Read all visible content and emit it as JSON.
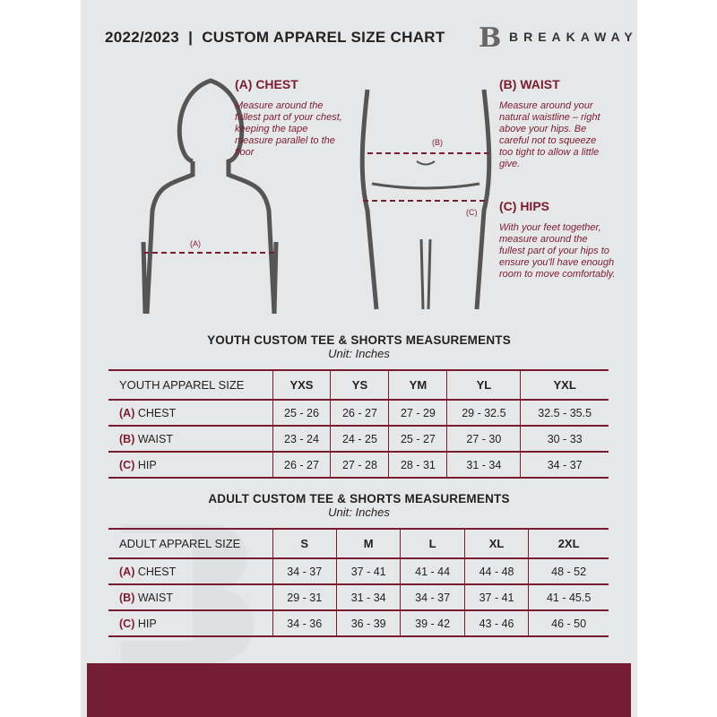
{
  "header": {
    "title": "2022/2023  |  CUSTOM APPAREL SIZE CHART",
    "brand": "BREAKAWAY",
    "logo_letter": "B"
  },
  "measures": {
    "chest": {
      "heading": "(A) CHEST",
      "desc": "Measure around the fullest part of your chest, keeping the tape measure parallel to the floor",
      "marker": "(A)"
    },
    "waist": {
      "heading": "(B) WAIST",
      "desc": "Measure around your natural waistline – right above your hips. Be careful not to squeeze too tight to allow a little give.",
      "marker": "(B)"
    },
    "hips": {
      "heading": "(C) HIPS",
      "desc": "With your feet together, measure around the fullest part of your hips to ensure you'll have enough room to move comfortably.",
      "marker": "(C)"
    }
  },
  "youth": {
    "title": "YOUTH CUSTOM TEE & SHORTS MEASUREMENTS",
    "unit": "Unit: Inches",
    "size_label": "YOUTH APPAREL SIZE",
    "sizes": [
      "YXS",
      "YS",
      "YM",
      "YL",
      "YXL"
    ],
    "rows": [
      {
        "letter": "(A)",
        "name": "CHEST",
        "values": [
          "25 - 26",
          "26 - 27",
          "27 - 29",
          "29 - 32.5",
          "32.5 - 35.5"
        ]
      },
      {
        "letter": "(B)",
        "name": "WAIST",
        "values": [
          "23 - 24",
          "24 - 25",
          "25 - 27",
          "27 - 30",
          "30 - 33"
        ]
      },
      {
        "letter": "(C)",
        "name": "HIP",
        "values": [
          "26 - 27",
          "27 - 28",
          "28 - 31",
          "31 - 34",
          "34 - 37"
        ]
      }
    ]
  },
  "adult": {
    "title": "ADULT CUSTOM TEE & SHORTS MEASUREMENTS",
    "unit": "Unit: Inches",
    "size_label": "ADULT APPAREL SIZE",
    "sizes": [
      "S",
      "M",
      "L",
      "XL",
      "2XL"
    ],
    "rows": [
      {
        "letter": "(A)",
        "name": "CHEST",
        "values": [
          "34 - 37",
          "37 - 41",
          "41 - 44",
          "44 - 48",
          "48 - 52"
        ]
      },
      {
        "letter": "(B)",
        "name": "WAIST",
        "values": [
          "29 - 31",
          "31 - 34",
          "34 - 37",
          "37 - 41",
          "41 - 45.5"
        ]
      },
      {
        "letter": "(C)",
        "name": "HIP",
        "values": [
          "34 - 36",
          "36 - 39",
          "39 - 42",
          "43 - 46",
          "46 - 50"
        ]
      }
    ]
  },
  "colors": {
    "accent": "#7a1c30",
    "background": "#e6e7e9",
    "footer": "#741c31"
  }
}
